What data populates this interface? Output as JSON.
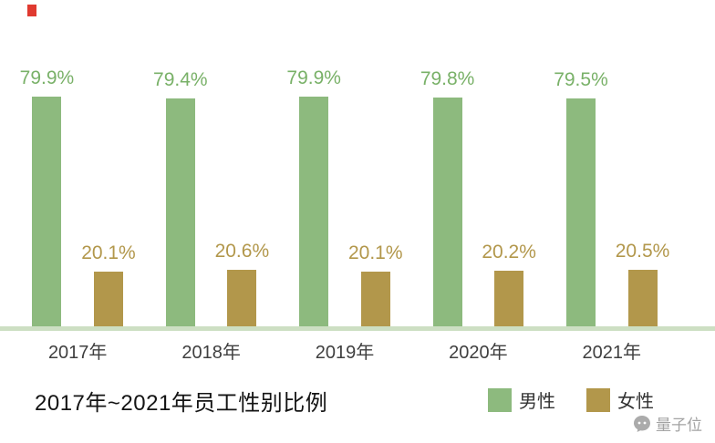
{
  "chart_data": {
    "type": "bar",
    "categories": [
      "2017年",
      "2018年",
      "2019年",
      "2020年",
      "2021年"
    ],
    "series": [
      {
        "key": "male",
        "name": "男性",
        "color": "#8dba7e",
        "label_color": "#79b168",
        "values": [
          79.9,
          79.4,
          79.9,
          79.8,
          79.5
        ]
      },
      {
        "key": "female",
        "name": "女性",
        "color": "#b2974b",
        "label_color": "#b2974b",
        "values": [
          20.1,
          20.6,
          20.1,
          20.2,
          20.5
        ]
      }
    ],
    "value_suffix": "%",
    "title": "2017年~2021年员工性别比例",
    "xlabel": "",
    "ylabel": "",
    "ylim": [
      0,
      100
    ],
    "grid": false,
    "legend_position": "bottom-right",
    "baseline_color": "#cddfc3"
  },
  "footer": {
    "title": "2017年~2021年员工性别比例"
  },
  "watermark": {
    "text": "量子位"
  }
}
